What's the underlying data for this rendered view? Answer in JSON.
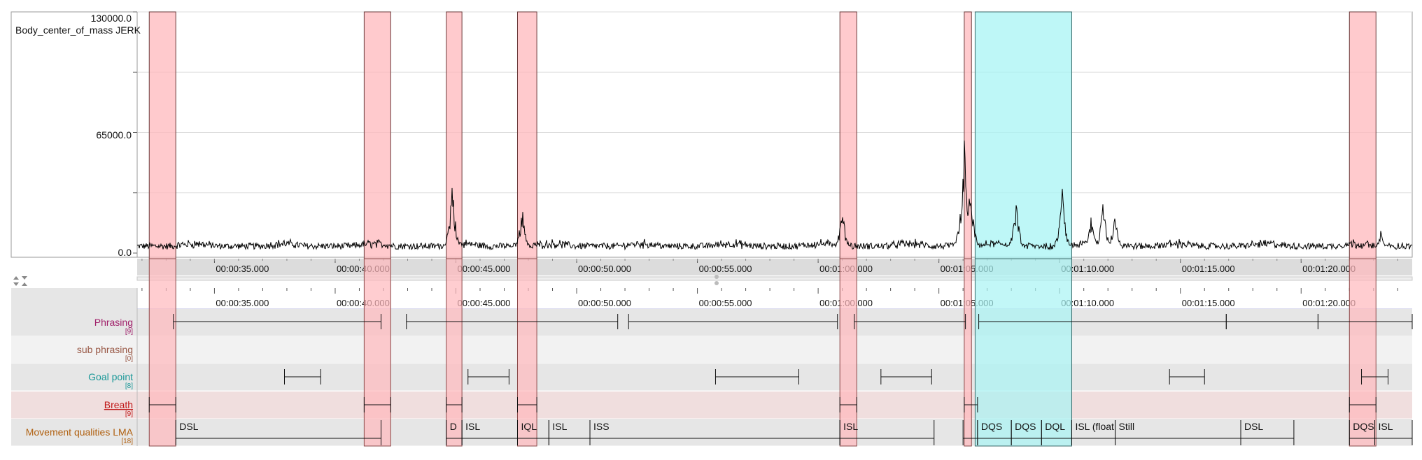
{
  "signal": {
    "label": "Body_center_of_mass JERK",
    "y_ticks": [
      "130000.0",
      "65000.0",
      "0.0"
    ]
  },
  "chart_data": {
    "type": "line",
    "title": "Body_center_of_mass JERK",
    "xlabel": "",
    "ylabel": "",
    "ylim": [
      0,
      130000
    ],
    "xlim_seconds": [
      31.8,
      84.6
    ],
    "x_ticks": [
      "00:00:35.000",
      "00:00:40.000",
      "00:00:45.000",
      "00:00:50.000",
      "00:00:55.000",
      "00:01:00.000",
      "00:01:05.000",
      "00:01:10.000",
      "00:01:15.000",
      "00:01:20.000"
    ],
    "grid": true,
    "peaks": [
      {
        "t": 44.85,
        "value": 39000
      },
      {
        "t": 47.75,
        "value": 27000
      },
      {
        "t": 61.0,
        "value": 26000
      },
      {
        "t": 66.05,
        "value": 65000
      },
      {
        "t": 66.3,
        "value": 40000
      },
      {
        "t": 68.2,
        "value": 29000
      },
      {
        "t": 70.1,
        "value": 37000
      },
      {
        "t": 71.3,
        "value": 22000
      },
      {
        "t": 71.8,
        "value": 30000
      },
      {
        "t": 72.3,
        "value": 25000
      },
      {
        "t": 83.3,
        "value": 13000
      }
    ]
  },
  "timeline": {
    "ticks": [
      "00:00:35.000",
      "00:00:40.000",
      "00:00:45.000",
      "00:00:50.000",
      "00:00:55.000",
      "00:01:00.000",
      "00:01:05.000",
      "00:01:10.000",
      "00:01:15.000",
      "00:01:20.000"
    ]
  },
  "tiers": [
    {
      "name": "Phrasing",
      "count": "[9]",
      "color": "#a0206a",
      "underline": false
    },
    {
      "name": "sub phrasing",
      "count": "[0]",
      "color": "#9a5a48",
      "underline": false
    },
    {
      "name": "Goal point",
      "count": "[8]",
      "color": "#1a9898",
      "underline": false
    },
    {
      "name": "Breath",
      "count": "[9]",
      "color": "#c01818",
      "underline": true
    },
    {
      "name": "Movement qualities LMA",
      "count": "[18]",
      "color": "#b06010",
      "underline": false
    }
  ],
  "annotations": {
    "phrasing": [
      [
        33.3,
        41.9
      ],
      [
        42.95,
        51.7
      ],
      [
        52.15,
        60.8
      ],
      [
        61.5,
        66.1
      ],
      [
        66.65,
        76.9
      ],
      [
        76.9,
        80.7
      ],
      [
        80.7,
        84.6
      ]
    ],
    "goal_point": [
      [
        37.9,
        39.4
      ],
      [
        45.5,
        47.2
      ],
      [
        55.75,
        59.2
      ],
      [
        62.6,
        64.7
      ],
      [
        74.55,
        76.0
      ],
      [
        82.5,
        83.6
      ]
    ],
    "breath": [
      [
        32.3,
        33.4
      ],
      [
        41.2,
        42.3
      ],
      [
        44.6,
        45.25
      ],
      [
        47.55,
        48.35
      ],
      [
        60.9,
        61.6
      ],
      [
        66.05,
        66.6
      ],
      [
        82.0,
        83.1
      ]
    ],
    "movement": [
      {
        "start": 33.4,
        "end": 41.9,
        "label": "DSL"
      },
      {
        "start": 44.6,
        "end": 45.25,
        "label": "D"
      },
      {
        "start": 45.25,
        "end": 47.55,
        "label": "ISL"
      },
      {
        "start": 47.55,
        "end": 48.85,
        "label": "IQL"
      },
      {
        "start": 48.85,
        "end": 50.55,
        "label": "ISL"
      },
      {
        "start": 50.55,
        "end": 60.9,
        "label": "ISS"
      },
      {
        "start": 60.9,
        "end": 64.8,
        "label": "ISL"
      },
      {
        "start": 66.0,
        "end": 66.6,
        "label": ""
      },
      {
        "start": 66.6,
        "end": 68.0,
        "label": "DQS"
      },
      {
        "start": 68.0,
        "end": 69.25,
        "label": "DQS"
      },
      {
        "start": 69.25,
        "end": 70.5,
        "label": "DQL"
      },
      {
        "start": 70.5,
        "end": 72.3,
        "label": "ISL (float"
      },
      {
        "start": 72.3,
        "end": 77.5,
        "label": "Still"
      },
      {
        "start": 77.5,
        "end": 79.7,
        "label": "DSL"
      },
      {
        "start": 82.0,
        "end": 83.05,
        "label": "DQS"
      },
      {
        "start": 83.05,
        "end": 84.6,
        "label": "ISL"
      }
    ]
  },
  "selections": {
    "pink": [
      [
        32.3,
        33.4
      ],
      [
        41.2,
        42.3
      ],
      [
        44.6,
        45.25
      ],
      [
        47.55,
        48.35
      ],
      [
        60.9,
        61.6
      ],
      [
        66.05,
        66.35
      ],
      [
        82.0,
        83.1
      ]
    ],
    "cyan": [
      [
        66.5,
        70.5
      ]
    ]
  },
  "colors": {
    "pink_fill": "#ffb8bc",
    "cyan_fill": "#a8f4f4",
    "signal": "#000000",
    "gridline": "#dddddd"
  }
}
